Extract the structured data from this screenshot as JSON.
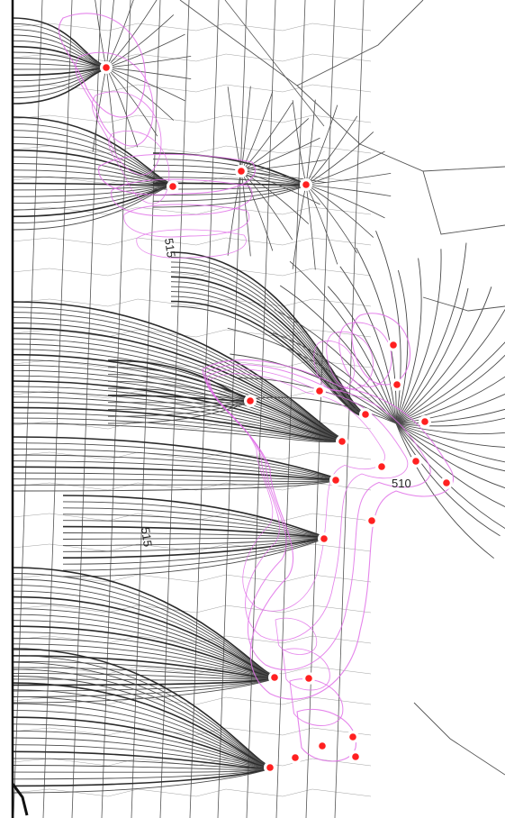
{
  "colors": {
    "background": "#ffffff",
    "flowline": "#4a4a4a",
    "flowline_dense": "#2a2a2a",
    "grid": "#555555",
    "boundary": "#111111",
    "plume": "#e070e8",
    "well": "#ff2020",
    "well_ring": "#ffffff"
  },
  "contour_labels": [
    {
      "id": "upper",
      "text": "515"
    },
    {
      "id": "middle",
      "text": "515"
    },
    {
      "id": "right",
      "text": "510"
    }
  ],
  "wells": [
    {
      "id": "w1"
    },
    {
      "id": "w2"
    },
    {
      "id": "w3"
    },
    {
      "id": "w4"
    },
    {
      "id": "w5"
    },
    {
      "id": "w6"
    },
    {
      "id": "w7"
    },
    {
      "id": "w8"
    },
    {
      "id": "w9"
    },
    {
      "id": "w10"
    },
    {
      "id": "w11"
    },
    {
      "id": "w12"
    },
    {
      "id": "w13"
    },
    {
      "id": "w14"
    },
    {
      "id": "w15"
    },
    {
      "id": "w16"
    },
    {
      "id": "w17"
    },
    {
      "id": "w18"
    },
    {
      "id": "w19"
    },
    {
      "id": "w20"
    },
    {
      "id": "w21"
    },
    {
      "id": "w22"
    },
    {
      "id": "w23"
    },
    {
      "id": "w24"
    }
  ]
}
